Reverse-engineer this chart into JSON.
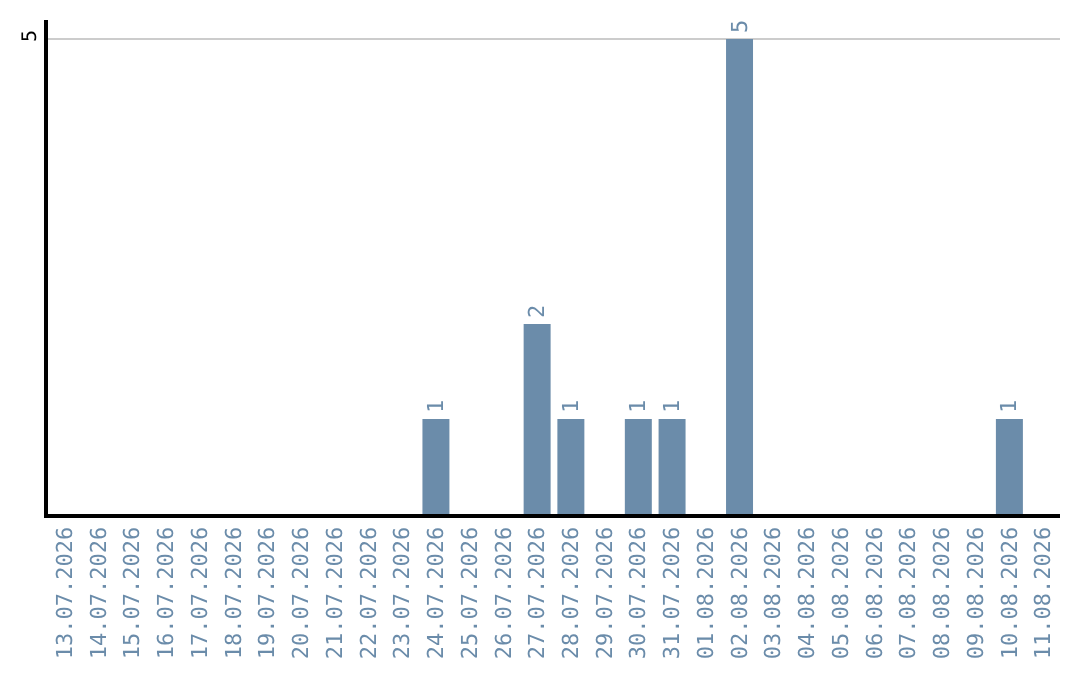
{
  "chart_data": {
    "type": "bar",
    "categories": [
      "13.07.2026",
      "14.07.2026",
      "15.07.2026",
      "16.07.2026",
      "17.07.2026",
      "18.07.2026",
      "19.07.2026",
      "20.07.2026",
      "21.07.2026",
      "22.07.2026",
      "23.07.2026",
      "24.07.2026",
      "25.07.2026",
      "26.07.2026",
      "27.07.2026",
      "28.07.2026",
      "29.07.2026",
      "30.07.2026",
      "31.07.2026",
      "01.08.2026",
      "02.08.2026",
      "03.08.2026",
      "04.08.2026",
      "05.08.2026",
      "06.08.2026",
      "07.08.2026",
      "08.08.2026",
      "09.08.2026",
      "10.08.2026",
      "11.08.2026"
    ],
    "values": [
      0,
      0,
      0,
      0,
      0,
      0,
      0,
      0,
      0,
      0,
      0,
      1,
      0,
      0,
      2,
      1,
      0,
      1,
      1,
      0,
      5,
      0,
      0,
      0,
      0,
      0,
      0,
      0,
      1,
      0
    ],
    "value_labels": [
      null,
      null,
      null,
      null,
      null,
      null,
      null,
      null,
      null,
      null,
      null,
      "1",
      null,
      null,
      "2",
      "1",
      null,
      "1",
      "1",
      null,
      "5",
      null,
      null,
      null,
      null,
      null,
      null,
      null,
      "1",
      null
    ],
    "color": "#6b8caa",
    "ylim": [
      0,
      5.2
    ],
    "yticks": [
      5
    ],
    "grid": "y"
  }
}
